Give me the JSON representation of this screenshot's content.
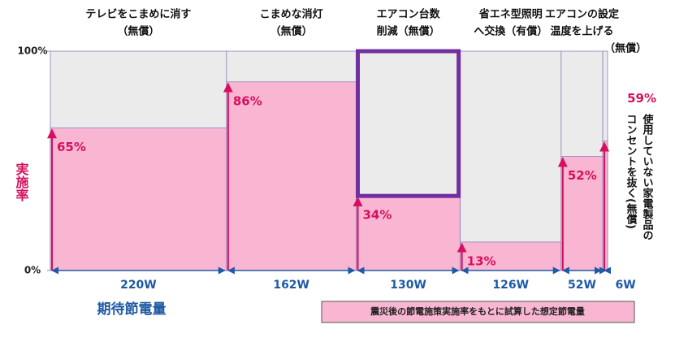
{
  "chart_data": {
    "type": "mekko",
    "categories": [
      [
        "テレビをこまめに消す",
        "（無償）"
      ],
      [
        "こまめな消灯",
        "（無償）"
      ],
      [
        "エアコン台数",
        "削減（無償）"
      ],
      [
        "省エネ型照明",
        "へ交換（有償）"
      ],
      [
        "エアコンの設定",
        "温度を上げる",
        "（無償）"
      ],
      [
        "使用していない家電製品の",
        "コンセントを抜く(無償)"
      ]
    ],
    "values": [
      65,
      86,
      34,
      13,
      52,
      59
    ],
    "value_labels": [
      "65%",
      "86%",
      "34%",
      "13%",
      "52%",
      "59%"
    ],
    "widths": [
      220,
      162,
      130,
      126,
      52,
      6
    ],
    "width_labels": [
      "220W",
      "162W",
      "130W",
      "126W",
      "52W",
      "6W"
    ],
    "ylim": [
      0,
      100
    ],
    "yticks": [
      {
        "value": 0,
        "label": "0%"
      },
      {
        "value": 100,
        "label": "100%"
      }
    ],
    "y_label": "実施率",
    "x_label": "期待節電量",
    "note": "震災後の節電施策実施率をもとに試算した想定節電量",
    "highlight": 2,
    "color": "#f9b6d2",
    "background_color": "#ebebeb",
    "arrow_color": "#d6105e",
    "highlight_color": "#7030a0",
    "width_label_color": "#1f5aa6"
  }
}
